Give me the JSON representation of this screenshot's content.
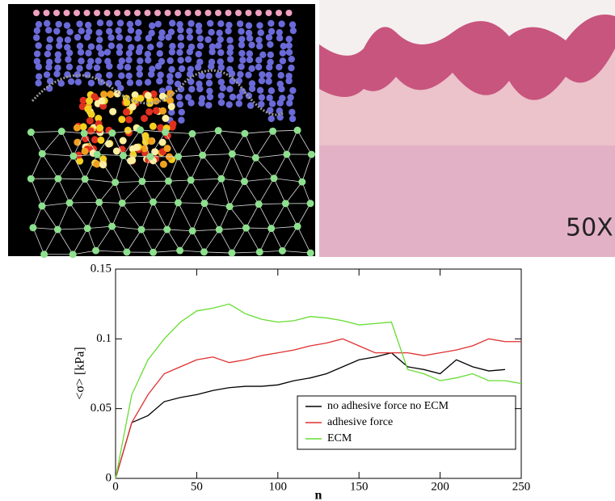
{
  "figure": {
    "histology_label": "50X"
  },
  "chart_data": {
    "type": "line",
    "xlabel": "n",
    "ylabel": "<σ>  [kPa]",
    "x": [
      0,
      10,
      20,
      30,
      40,
      50,
      60,
      70,
      80,
      90,
      100,
      110,
      120,
      130,
      140,
      150,
      160,
      170,
      180,
      190,
      200,
      210,
      220,
      230,
      240,
      250
    ],
    "xlim": [
      0,
      250
    ],
    "xticks": [
      0,
      50,
      100,
      150,
      200,
      250
    ],
    "ylim": [
      0,
      0.15
    ],
    "yticks": [
      0,
      0.05,
      0.1,
      0.15
    ],
    "legend": "lower right",
    "series": [
      {
        "name": "no adhesive force no ECM",
        "color": "#000000",
        "values": [
          0,
          0.04,
          0.045,
          0.055,
          0.058,
          0.06,
          0.063,
          0.065,
          0.066,
          0.066,
          0.067,
          0.07,
          0.072,
          0.075,
          0.08,
          0.085,
          0.087,
          0.09,
          0.08,
          0.078,
          0.075,
          0.085,
          0.08,
          0.077,
          0.078,
          null
        ]
      },
      {
        "name": "adhesive force",
        "color": "#e03030",
        "values": [
          0,
          0.04,
          0.06,
          0.075,
          0.08,
          0.085,
          0.087,
          0.083,
          0.085,
          0.088,
          0.09,
          0.092,
          0.095,
          0.097,
          0.1,
          0.095,
          0.09,
          0.09,
          0.09,
          0.088,
          0.09,
          0.092,
          0.095,
          0.1,
          0.098,
          0.098
        ]
      },
      {
        "name": "ECM",
        "color": "#66dd33",
        "values": [
          0,
          0.06,
          0.085,
          0.1,
          0.112,
          0.12,
          0.122,
          0.125,
          0.118,
          0.114,
          0.112,
          0.113,
          0.116,
          0.115,
          0.113,
          0.11,
          0.111,
          0.112,
          0.078,
          0.075,
          0.07,
          0.072,
          0.075,
          0.07,
          0.07,
          0.068
        ]
      }
    ]
  }
}
